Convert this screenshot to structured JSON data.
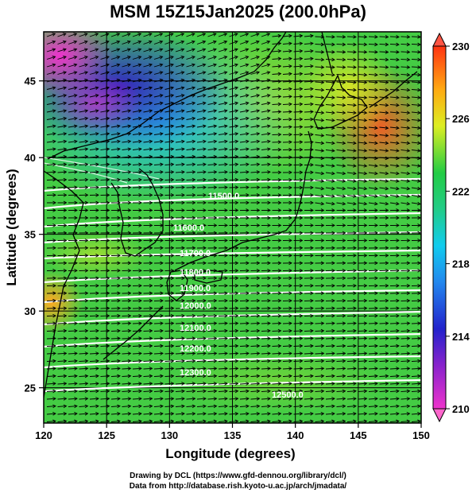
{
  "title": "MSM 15Z15Jan2025 (200.0hPa)",
  "x_axis": {
    "label": "Longitude (degrees)",
    "ticks": [
      "120",
      "125",
      "130",
      "135",
      "140",
      "145",
      "150"
    ]
  },
  "y_axis": {
    "label": "Latitude (degrees)",
    "ticks": [
      "25",
      "30",
      "35",
      "40",
      "45"
    ]
  },
  "colorbar": {
    "ticks": [
      "210",
      "214",
      "218",
      "222",
      "226",
      "230"
    ],
    "colors": [
      "#ee33cc",
      "#2222cc",
      "#11ccee",
      "#22cc44",
      "#ddee22",
      "#ff3311"
    ]
  },
  "contour_labels": [
    "11500.0",
    "11600.0",
    "11700.0",
    "11800.0",
    "11900.0",
    "12000.0",
    "12100.0",
    "12200.0",
    "12300.0",
    "12500.0"
  ],
  "credits": {
    "line1": "Drawing by DCL (https://www.gfd-dennou.org/library/dcl/)",
    "line2": "Data from http://database.rish.kyoto-u.ac.jp/arch/jmadata/"
  }
}
